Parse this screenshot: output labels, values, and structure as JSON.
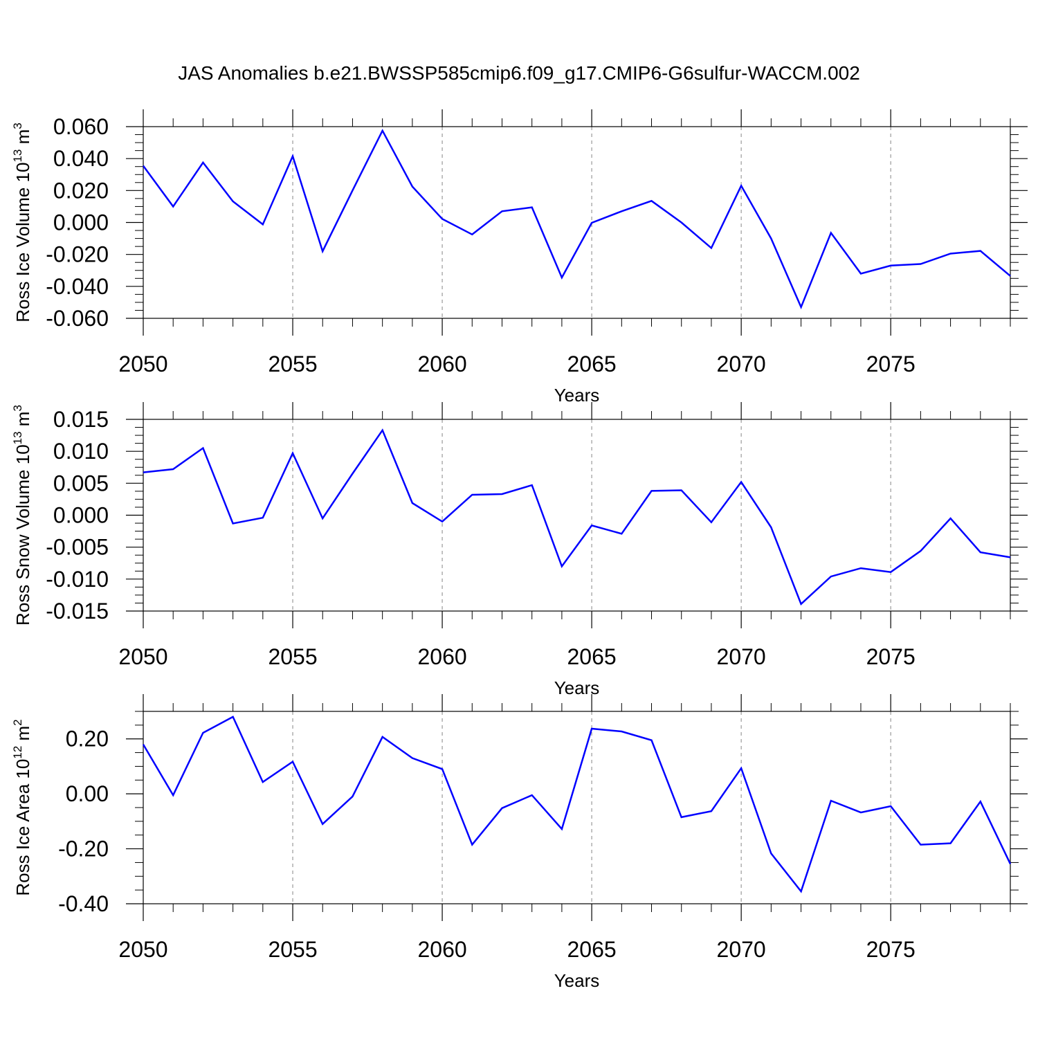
{
  "title": "JAS Anomalies b.e21.BWSSP585cmip6.f09_g17.CMIP6-G6sulfur-WACCM.002",
  "line_color": "#0000ff",
  "chart_data": [
    {
      "type": "line",
      "xlabel": "Years",
      "ylabel": "Ross Ice Volume 10",
      "ylabel_exp": "13",
      "ylabel_unit": "m",
      "ylabel_unit_exp": "3",
      "xlim": [
        2050,
        2079
      ],
      "ylim": [
        -0.06,
        0.06
      ],
      "xticks": [
        2050,
        2055,
        2060,
        2065,
        2070,
        2075
      ],
      "xtick_labels": [
        "2050",
        "2055",
        "2060",
        "2065",
        "2070",
        "2075"
      ],
      "yticks": [
        -0.06,
        -0.04,
        -0.02,
        0.0,
        0.02,
        0.04,
        0.06
      ],
      "ytick_labels": [
        "-0.060",
        "-0.040",
        "-0.020",
        "0.000",
        "0.020",
        "0.040",
        "0.060"
      ],
      "x": [
        2050,
        2051,
        2052,
        2053,
        2054,
        2055,
        2056,
        2057,
        2058,
        2059,
        2060,
        2061,
        2062,
        2063,
        2064,
        2065,
        2066,
        2067,
        2068,
        2069,
        2070,
        2071,
        2072,
        2073,
        2074,
        2075,
        2076,
        2077,
        2078,
        2079
      ],
      "values": [
        0.0355,
        0.01,
        0.0375,
        0.0132,
        -0.0012,
        0.0415,
        -0.018,
        0.02,
        0.0575,
        0.0225,
        0.0022,
        -0.0075,
        0.007,
        0.0095,
        -0.0345,
        -0.0002,
        0.007,
        0.0135,
        0.0,
        -0.016,
        0.023,
        -0.01,
        -0.053,
        -0.0065,
        -0.032,
        -0.027,
        -0.026,
        -0.0195,
        -0.0178,
        -0.0335
      ]
    },
    {
      "type": "line",
      "xlabel": "Years",
      "ylabel": "Ross Snow Volume 10",
      "ylabel_exp": "13",
      "ylabel_unit": "m",
      "ylabel_unit_exp": "3",
      "xlim": [
        2050,
        2079
      ],
      "ylim": [
        -0.015,
        0.015
      ],
      "xticks": [
        2050,
        2055,
        2060,
        2065,
        2070,
        2075
      ],
      "xtick_labels": [
        "2050",
        "2055",
        "2060",
        "2065",
        "2070",
        "2075"
      ],
      "yticks": [
        -0.015,
        -0.01,
        -0.005,
        0.0,
        0.005,
        0.01,
        0.015
      ],
      "ytick_labels": [
        "-0.015",
        "-0.010",
        "-0.005",
        "0.000",
        "0.005",
        "0.010",
        "0.015"
      ],
      "x": [
        2050,
        2051,
        2052,
        2053,
        2054,
        2055,
        2056,
        2057,
        2058,
        2059,
        2060,
        2061,
        2062,
        2063,
        2064,
        2065,
        2066,
        2067,
        2068,
        2069,
        2070,
        2071,
        2072,
        2073,
        2074,
        2075,
        2076,
        2077,
        2078,
        2079
      ],
      "values": [
        0.0067,
        0.0072,
        0.0105,
        -0.0013,
        -0.0004,
        0.0097,
        -0.0005,
        0.0065,
        0.0133,
        0.0019,
        -0.001,
        0.0032,
        0.0033,
        0.0047,
        -0.008,
        -0.0016,
        -0.0029,
        0.0038,
        0.0039,
        -0.0011,
        0.0052,
        -0.0019,
        -0.0139,
        -0.0096,
        -0.0083,
        -0.0089,
        -0.0056,
        -0.0005,
        -0.0058,
        -0.0066
      ]
    },
    {
      "type": "line",
      "xlabel": "Years",
      "ylabel": "Ross Ice Area 10",
      "ylabel_exp": "12",
      "ylabel_unit": "m",
      "ylabel_unit_exp": "2",
      "xlim": [
        2050,
        2079
      ],
      "ylim": [
        -0.4,
        0.3
      ],
      "xticks": [
        2050,
        2055,
        2060,
        2065,
        2070,
        2075
      ],
      "xtick_labels": [
        "2050",
        "2055",
        "2060",
        "2065",
        "2070",
        "2075"
      ],
      "yticks": [
        -0.4,
        -0.2,
        0.0,
        0.2
      ],
      "ytick_labels": [
        "-0.40",
        "-0.20",
        "0.00",
        "0.20"
      ],
      "x": [
        2050,
        2051,
        2052,
        2053,
        2054,
        2055,
        2056,
        2057,
        2058,
        2059,
        2060,
        2061,
        2062,
        2063,
        2064,
        2065,
        2066,
        2067,
        2068,
        2069,
        2070,
        2071,
        2072,
        2073,
        2074,
        2075,
        2076,
        2077,
        2078,
        2079
      ],
      "values": [
        0.18,
        -0.005,
        0.222,
        0.28,
        0.043,
        0.117,
        -0.11,
        -0.01,
        0.207,
        0.13,
        0.09,
        -0.185,
        -0.052,
        -0.005,
        -0.128,
        0.237,
        0.227,
        0.195,
        -0.085,
        -0.063,
        0.093,
        -0.217,
        -0.355,
        -0.025,
        -0.068,
        -0.045,
        -0.185,
        -0.18,
        -0.028,
        -0.255
      ]
    }
  ]
}
